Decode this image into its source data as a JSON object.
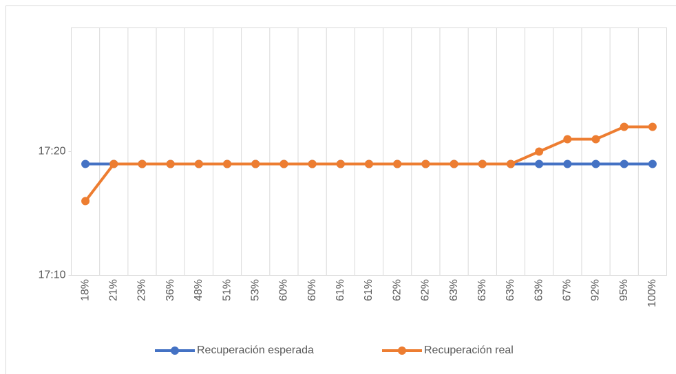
{
  "chart_data": {
    "type": "line",
    "categories": [
      "18%",
      "21%",
      "23%",
      "36%",
      "48%",
      "51%",
      "53%",
      "60%",
      "60%",
      "61%",
      "61%",
      "62%",
      "62%",
      "63%",
      "63%",
      "63%",
      "63%",
      "67%",
      "92%",
      "95%",
      "100%"
    ],
    "series": [
      {
        "name": "Recuperación esperada",
        "color": "#4472c4",
        "values": [
          1039,
          1039,
          1039,
          1039,
          1039,
          1039,
          1039,
          1039,
          1039,
          1039,
          1039,
          1039,
          1039,
          1039,
          1039,
          1039,
          1039,
          1039,
          1039,
          1039,
          1039
        ]
      },
      {
        "name": "Recuperación real",
        "color": "#ed7d31",
        "values": [
          1036,
          1039,
          1039,
          1039,
          1039,
          1039,
          1039,
          1039,
          1039,
          1039,
          1039,
          1039,
          1039,
          1039,
          1039,
          1039,
          1040,
          1041,
          1041,
          1042,
          1042
        ]
      }
    ],
    "ylim": [
      1030,
      1050
    ],
    "yticks": [
      {
        "value": 1030,
        "label": "17:10"
      },
      {
        "value": 1040,
        "label": "17:20"
      }
    ],
    "legend": "bottom"
  }
}
